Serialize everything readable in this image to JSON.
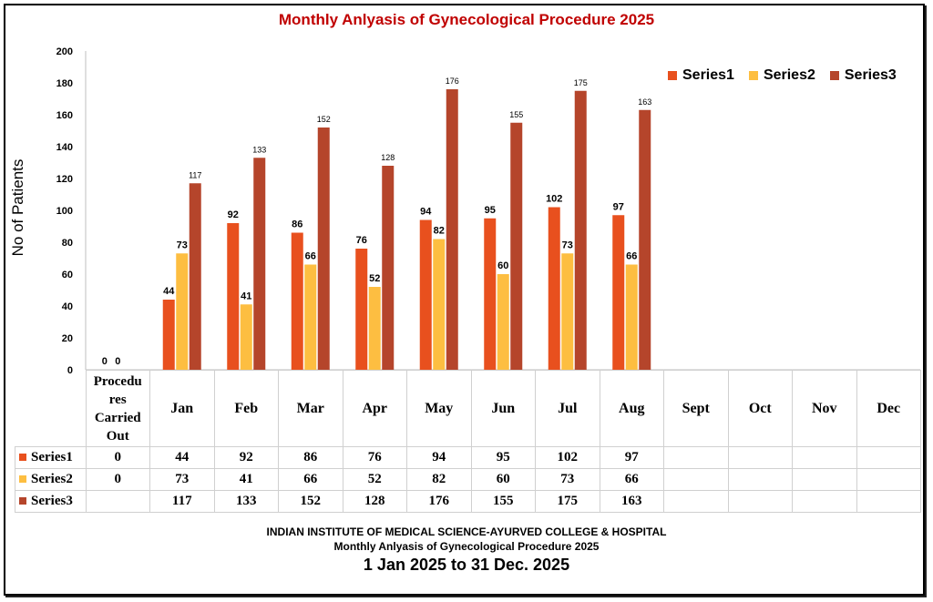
{
  "colors": {
    "series1": "#E8501E",
    "series2": "#FDBE41",
    "series3": "#B5452B",
    "title": "#C00000"
  },
  "chart_data": {
    "type": "bar",
    "title": "Monthly Anlyasis of Gynecological Procedure  2025",
    "ylabel": "No of Patients",
    "xlabel": "",
    "ylim": [
      0,
      200
    ],
    "yticks": [
      0,
      20,
      40,
      60,
      80,
      100,
      120,
      140,
      160,
      180,
      200
    ],
    "categories": [
      "Procedures Carried Out",
      "Jan",
      "Feb",
      "Mar",
      "Apr",
      "May",
      "Jun",
      "Jul",
      "Aug",
      "Sept",
      "Oct",
      "Nov",
      "Dec"
    ],
    "series": [
      {
        "name": "Series1",
        "values": [
          0,
          44,
          92,
          86,
          76,
          94,
          95,
          102,
          97,
          null,
          null,
          null,
          null
        ]
      },
      {
        "name": "Series2",
        "values": [
          0,
          73,
          41,
          66,
          52,
          82,
          60,
          73,
          66,
          null,
          null,
          null,
          null
        ]
      },
      {
        "name": "Series3",
        "values": [
          null,
          117,
          133,
          152,
          128,
          176,
          155,
          175,
          163,
          null,
          null,
          null,
          null
        ]
      }
    ],
    "legend": "top-right",
    "grid": false
  },
  "table": {
    "header_first": "Procedu res Carried Out"
  },
  "footer": {
    "line1": "INDIAN INSTITUTE OF MEDICAL SCIENCE-AYURVED COLLEGE & HOSPITAL",
    "line2": "Monthly Anlyasis of Gynecological Procedure  2025",
    "line3": "1 Jan 2025 to 31 Dec. 2025"
  }
}
